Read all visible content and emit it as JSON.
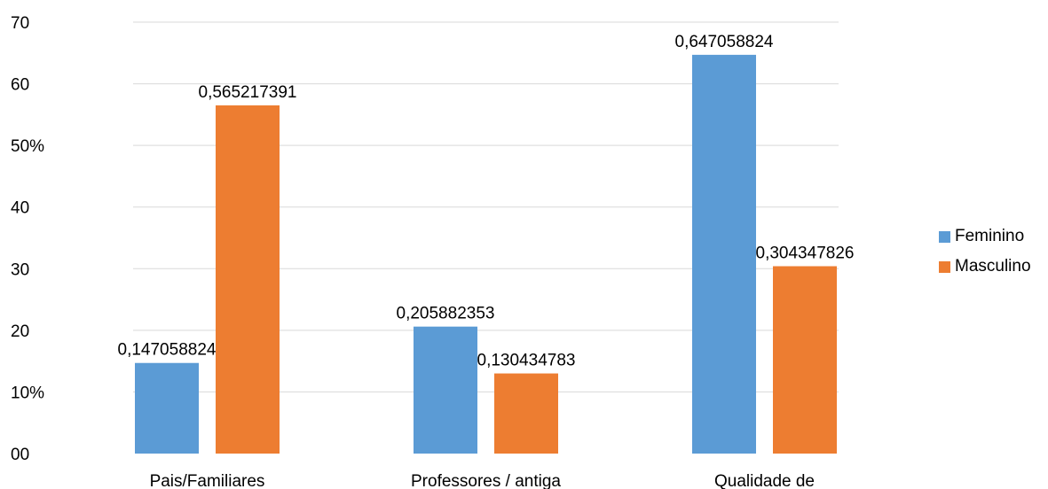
{
  "chart_data": {
    "type": "bar",
    "categories": [
      "Pais/Familiares",
      "Professores / antiga",
      "Qualidade de"
    ],
    "y_tick_labels": [
      "00",
      "10%",
      "20",
      "30",
      "40",
      "50%",
      "60",
      "70"
    ],
    "ylim": [
      0,
      70
    ],
    "grid": true,
    "legend_position": "right",
    "series": [
      {
        "name": "Feminino",
        "color": "#5B9BD5",
        "values": [
          14.7,
          20.6,
          64.7
        ],
        "data_labels": [
          "0,147058824",
          "0,205882353",
          "0,647058824"
        ]
      },
      {
        "name": "Masculino",
        "color": "#ED7D31",
        "values": [
          56.5,
          13.0,
          30.4
        ],
        "data_labels": [
          "0,565217391",
          "0,130434783",
          "0,304347826"
        ]
      }
    ]
  }
}
